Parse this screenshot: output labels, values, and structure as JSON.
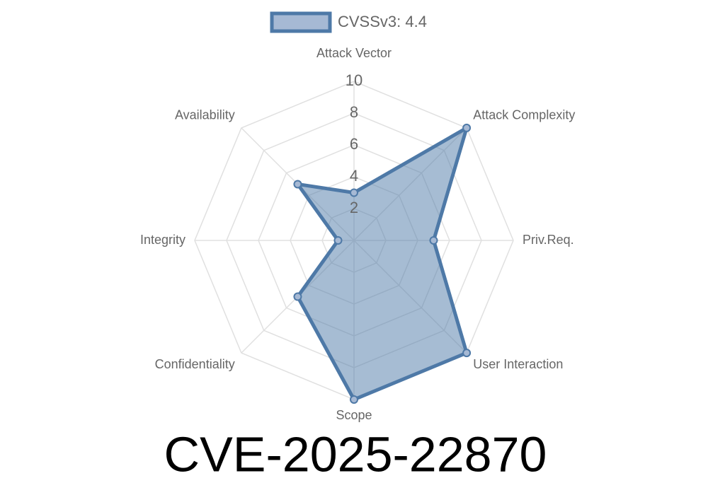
{
  "chart_data": {
    "type": "radar",
    "title": "CVE-2025-22870",
    "categories": [
      "Attack Vector",
      "Attack Complexity",
      "Priv.Req.",
      "User Interaction",
      "Scope",
      "Confidentiality",
      "Integrity",
      "Availability"
    ],
    "series": [
      {
        "name": "CVSSv3: 4.4",
        "color": "#4e79a7",
        "values": [
          3,
          10,
          5,
          10,
          10,
          5,
          1,
          5
        ]
      }
    ],
    "ylim": [
      0,
      10
    ],
    "yticks": [
      2,
      4,
      6,
      8,
      10
    ],
    "grid": true,
    "legend": "top"
  }
}
